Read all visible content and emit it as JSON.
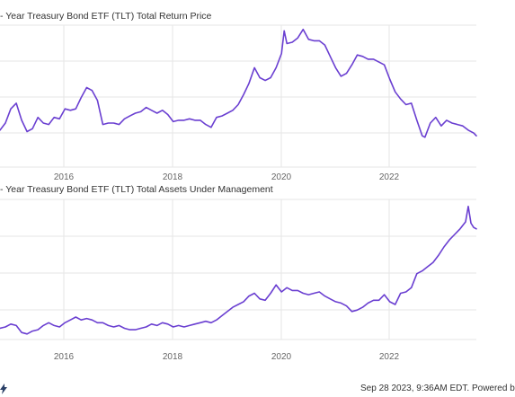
{
  "chart_data": [
    {
      "type": "line",
      "title": "- Year Treasury Bond ETF (TLT) Total Return Price",
      "x_tick_labels": [
        "2016",
        "2018",
        "2020",
        "2022"
      ],
      "xlim": [
        2014.95,
        2023.75
      ],
      "ylim": [
        0,
        1
      ],
      "grid": true,
      "series": [
        {
          "color": "#6a3fd1",
          "points": [
            [
              2014.95,
              0.26
            ],
            [
              2015.05,
              0.31
            ],
            [
              2015.15,
              0.41
            ],
            [
              2015.25,
              0.45
            ],
            [
              2015.35,
              0.33
            ],
            [
              2015.45,
              0.25
            ],
            [
              2015.55,
              0.27
            ],
            [
              2015.65,
              0.35
            ],
            [
              2015.75,
              0.31
            ],
            [
              2015.85,
              0.3
            ],
            [
              2015.95,
              0.35
            ],
            [
              2016.05,
              0.34
            ],
            [
              2016.15,
              0.41
            ],
            [
              2016.25,
              0.4
            ],
            [
              2016.35,
              0.41
            ],
            [
              2016.45,
              0.49
            ],
            [
              2016.55,
              0.56
            ],
            [
              2016.65,
              0.54
            ],
            [
              2016.75,
              0.47
            ],
            [
              2016.85,
              0.3
            ],
            [
              2016.95,
              0.31
            ],
            [
              2017.05,
              0.31
            ],
            [
              2017.15,
              0.3
            ],
            [
              2017.25,
              0.34
            ],
            [
              2017.35,
              0.36
            ],
            [
              2017.45,
              0.38
            ],
            [
              2017.55,
              0.39
            ],
            [
              2017.65,
              0.42
            ],
            [
              2017.75,
              0.4
            ],
            [
              2017.85,
              0.38
            ],
            [
              2017.95,
              0.4
            ],
            [
              2018.05,
              0.37
            ],
            [
              2018.15,
              0.32
            ],
            [
              2018.25,
              0.33
            ],
            [
              2018.35,
              0.33
            ],
            [
              2018.45,
              0.34
            ],
            [
              2018.55,
              0.33
            ],
            [
              2018.65,
              0.33
            ],
            [
              2018.75,
              0.3
            ],
            [
              2018.85,
              0.28
            ],
            [
              2018.95,
              0.35
            ],
            [
              2019.05,
              0.36
            ],
            [
              2019.15,
              0.38
            ],
            [
              2019.25,
              0.4
            ],
            [
              2019.35,
              0.44
            ],
            [
              2019.45,
              0.51
            ],
            [
              2019.55,
              0.59
            ],
            [
              2019.65,
              0.7
            ],
            [
              2019.75,
              0.63
            ],
            [
              2019.85,
              0.61
            ],
            [
              2019.95,
              0.63
            ],
            [
              2020.05,
              0.7
            ],
            [
              2020.15,
              0.8
            ],
            [
              2020.2,
              0.96
            ],
            [
              2020.25,
              0.87
            ],
            [
              2020.35,
              0.88
            ],
            [
              2020.45,
              0.91
            ],
            [
              2020.55,
              0.97
            ],
            [
              2020.65,
              0.9
            ],
            [
              2020.75,
              0.89
            ],
            [
              2020.85,
              0.89
            ],
            [
              2020.95,
              0.86
            ],
            [
              2021.05,
              0.78
            ],
            [
              2021.15,
              0.7
            ],
            [
              2021.25,
              0.64
            ],
            [
              2021.35,
              0.66
            ],
            [
              2021.45,
              0.72
            ],
            [
              2021.55,
              0.79
            ],
            [
              2021.65,
              0.78
            ],
            [
              2021.75,
              0.76
            ],
            [
              2021.85,
              0.76
            ],
            [
              2021.95,
              0.74
            ],
            [
              2022.05,
              0.72
            ],
            [
              2022.15,
              0.62
            ],
            [
              2022.25,
              0.53
            ],
            [
              2022.35,
              0.48
            ],
            [
              2022.45,
              0.44
            ],
            [
              2022.55,
              0.45
            ],
            [
              2022.65,
              0.33
            ],
            [
              2022.75,
              0.22
            ],
            [
              2022.8,
              0.21
            ],
            [
              2022.9,
              0.31
            ],
            [
              2023.0,
              0.35
            ],
            [
              2023.1,
              0.29
            ],
            [
              2023.2,
              0.33
            ],
            [
              2023.3,
              0.31
            ],
            [
              2023.4,
              0.3
            ],
            [
              2023.5,
              0.29
            ],
            [
              2023.6,
              0.26
            ],
            [
              2023.7,
              0.24
            ],
            [
              2023.75,
              0.22
            ]
          ]
        }
      ]
    },
    {
      "type": "line",
      "title": "- Year Treasury Bond ETF (TLT) Total Assets Under Management",
      "x_tick_labels": [
        "2016",
        "2018",
        "2020",
        "2022"
      ],
      "xlim": [
        2014.95,
        2023.75
      ],
      "ylim": [
        0,
        1
      ],
      "grid": true,
      "series": [
        {
          "color": "#6a3fd1",
          "points": [
            [
              2014.95,
              0.08
            ],
            [
              2015.05,
              0.09
            ],
            [
              2015.15,
              0.11
            ],
            [
              2015.25,
              0.1
            ],
            [
              2015.35,
              0.05
            ],
            [
              2015.45,
              0.04
            ],
            [
              2015.55,
              0.06
            ],
            [
              2015.65,
              0.07
            ],
            [
              2015.75,
              0.1
            ],
            [
              2015.85,
              0.12
            ],
            [
              2015.95,
              0.1
            ],
            [
              2016.05,
              0.09
            ],
            [
              2016.15,
              0.12
            ],
            [
              2016.25,
              0.14
            ],
            [
              2016.35,
              0.16
            ],
            [
              2016.45,
              0.14
            ],
            [
              2016.55,
              0.15
            ],
            [
              2016.65,
              0.14
            ],
            [
              2016.75,
              0.12
            ],
            [
              2016.85,
              0.12
            ],
            [
              2016.95,
              0.1
            ],
            [
              2017.05,
              0.09
            ],
            [
              2017.15,
              0.1
            ],
            [
              2017.25,
              0.08
            ],
            [
              2017.35,
              0.07
            ],
            [
              2017.45,
              0.07
            ],
            [
              2017.55,
              0.08
            ],
            [
              2017.65,
              0.09
            ],
            [
              2017.75,
              0.11
            ],
            [
              2017.85,
              0.1
            ],
            [
              2017.95,
              0.12
            ],
            [
              2018.05,
              0.11
            ],
            [
              2018.15,
              0.09
            ],
            [
              2018.25,
              0.1
            ],
            [
              2018.35,
              0.09
            ],
            [
              2018.45,
              0.1
            ],
            [
              2018.55,
              0.11
            ],
            [
              2018.65,
              0.12
            ],
            [
              2018.75,
              0.13
            ],
            [
              2018.85,
              0.12
            ],
            [
              2018.95,
              0.14
            ],
            [
              2019.05,
              0.17
            ],
            [
              2019.15,
              0.2
            ],
            [
              2019.25,
              0.23
            ],
            [
              2019.35,
              0.25
            ],
            [
              2019.45,
              0.27
            ],
            [
              2019.55,
              0.31
            ],
            [
              2019.65,
              0.33
            ],
            [
              2019.75,
              0.29
            ],
            [
              2019.85,
              0.28
            ],
            [
              2019.95,
              0.33
            ],
            [
              2020.05,
              0.39
            ],
            [
              2020.15,
              0.34
            ],
            [
              2020.25,
              0.37
            ],
            [
              2020.35,
              0.35
            ],
            [
              2020.45,
              0.35
            ],
            [
              2020.55,
              0.33
            ],
            [
              2020.65,
              0.32
            ],
            [
              2020.75,
              0.33
            ],
            [
              2020.85,
              0.34
            ],
            [
              2020.95,
              0.31
            ],
            [
              2021.05,
              0.29
            ],
            [
              2021.15,
              0.27
            ],
            [
              2021.25,
              0.26
            ],
            [
              2021.35,
              0.24
            ],
            [
              2021.45,
              0.2
            ],
            [
              2021.55,
              0.21
            ],
            [
              2021.65,
              0.23
            ],
            [
              2021.75,
              0.26
            ],
            [
              2021.85,
              0.28
            ],
            [
              2021.95,
              0.28
            ],
            [
              2022.05,
              0.32
            ],
            [
              2022.15,
              0.27
            ],
            [
              2022.25,
              0.25
            ],
            [
              2022.35,
              0.33
            ],
            [
              2022.45,
              0.34
            ],
            [
              2022.55,
              0.37
            ],
            [
              2022.65,
              0.47
            ],
            [
              2022.75,
              0.49
            ],
            [
              2022.85,
              0.52
            ],
            [
              2022.95,
              0.55
            ],
            [
              2023.05,
              0.6
            ],
            [
              2023.15,
              0.66
            ],
            [
              2023.25,
              0.71
            ],
            [
              2023.35,
              0.75
            ],
            [
              2023.45,
              0.79
            ],
            [
              2023.55,
              0.84
            ],
            [
              2023.6,
              0.95
            ],
            [
              2023.65,
              0.83
            ],
            [
              2023.7,
              0.8
            ],
            [
              2023.75,
              0.79
            ]
          ]
        }
      ]
    }
  ],
  "footer": {
    "text": "Sep 28 2023, 9:36AM EDT. Powered b",
    "icon": "lightning-icon"
  }
}
